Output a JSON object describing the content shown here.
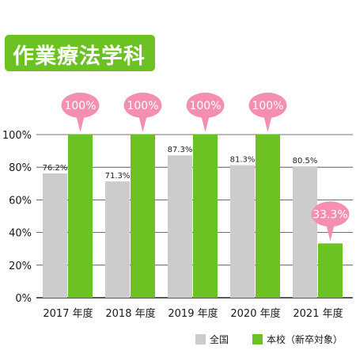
{
  "title": "作業療法学科",
  "colors": {
    "national": "#cccccc",
    "school": "#6cc223",
    "callout": "#f58fb0",
    "badge": "#6cc223"
  },
  "chart_data": {
    "type": "bar",
    "categories": [
      "2017 年度",
      "2018 年度",
      "2019 年度",
      "2020 年度",
      "2021 年度"
    ],
    "series": [
      {
        "name": "全国",
        "values": [
          76.2,
          71.3,
          87.3,
          81.3,
          80.5
        ],
        "labels": [
          "76.2%",
          "71.3%",
          "87.3%",
          "81.3%",
          "80.5%"
        ]
      },
      {
        "name": "本校（新卒対象）",
        "values": [
          100,
          100,
          100,
          100,
          33.3
        ],
        "labels": [
          "100%",
          "100%",
          "100%",
          "100%",
          "33.3%"
        ]
      }
    ],
    "yticks": [
      "0%",
      "20%",
      "40%",
      "60%",
      "80%",
      "100%"
    ],
    "ylim": [
      0,
      100
    ],
    "grid": true,
    "legend": "bottom-right"
  }
}
